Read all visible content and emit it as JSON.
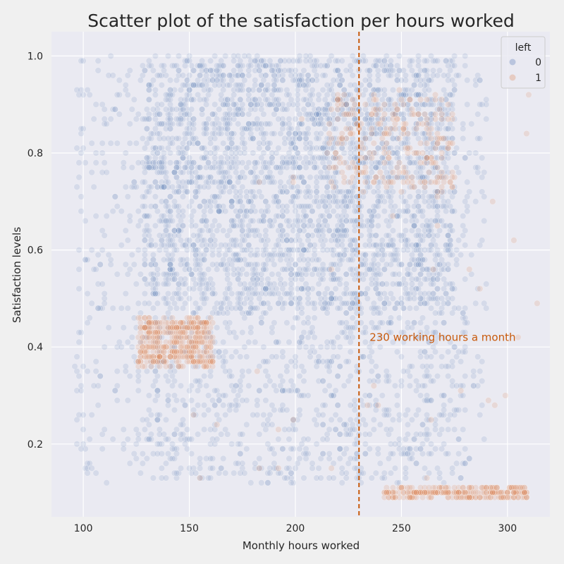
{
  "chart_data": {
    "type": "scatter",
    "title": "Scatter plot of the satisfaction per hours worked",
    "xlabel": "Monthly hours worked",
    "ylabel": "Satisfaction levels",
    "xlim": [
      85,
      320
    ],
    "ylim": [
      0.05,
      1.05
    ],
    "xticks": [
      100,
      150,
      200,
      250,
      300
    ],
    "yticks": [
      0.2,
      0.4,
      0.6,
      0.8,
      1.0
    ],
    "xtick_labels": [
      "100",
      "150",
      "200",
      "250",
      "300"
    ],
    "ytick_labels": [
      "0.2",
      "0.4",
      "0.6",
      "0.8",
      "1.0"
    ],
    "grid": true,
    "legend": {
      "title": "left",
      "placement": "top-right"
    },
    "series": [
      {
        "name": "0",
        "color": "#4c72b0",
        "clusters": [
          {
            "x": [
              128,
              275
            ],
            "y": [
              0.48,
              1.0
            ],
            "count": 2600
          },
          {
            "x": [
              96,
              290
            ],
            "y": [
              0.12,
              1.0
            ],
            "count": 1300
          },
          {
            "x": [
              130,
              280
            ],
            "y": [
              0.12,
              0.48
            ],
            "count": 500
          }
        ]
      },
      {
        "name": "1",
        "color": "#dd8452",
        "clusters": [
          {
            "x": [
              126,
              161
            ],
            "y": [
              0.36,
              0.46
            ],
            "count": 420
          },
          {
            "x": [
              242,
              310
            ],
            "y": [
              0.09,
              0.11
            ],
            "count": 260
          },
          {
            "x": [
              215,
              275
            ],
            "y": [
              0.72,
              0.92
            ],
            "count": 240
          },
          {
            "x": [
              150,
              315
            ],
            "y": [
              0.1,
              0.95
            ],
            "count": 45
          }
        ]
      }
    ],
    "reference_line": {
      "x": 230,
      "color": "#c85a0c",
      "label": "230 working hours a month"
    }
  }
}
